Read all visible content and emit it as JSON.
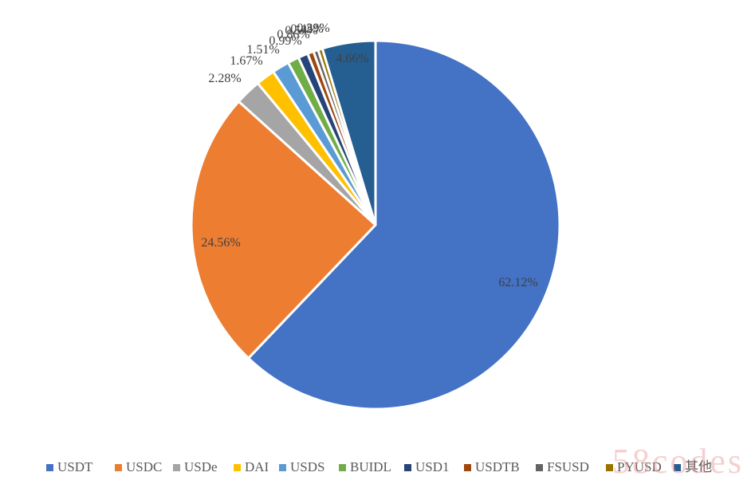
{
  "chart_data": {
    "type": "pie",
    "title": "",
    "slices": [
      {
        "label": "USDT",
        "value": 62.12,
        "display": "62.12%",
        "color": "#4472C4"
      },
      {
        "label": "USDC",
        "value": 24.56,
        "display": "24.56%",
        "color": "#ED7D31"
      },
      {
        "label": "USDe",
        "value": 2.28,
        "display": "2.28%",
        "color": "#A5A5A5"
      },
      {
        "label": "DAI",
        "value": 1.67,
        "display": "1.67%",
        "color": "#FFC000"
      },
      {
        "label": "USDS",
        "value": 1.51,
        "display": "1.51%",
        "color": "#5B9BD5"
      },
      {
        "label": "BUIDL",
        "value": 0.99,
        "display": "0.99%",
        "color": "#70AD47"
      },
      {
        "label": "USD1",
        "value": 0.86,
        "display": "0.86%",
        "color": "#264478"
      },
      {
        "label": "USDTB",
        "value": 0.54,
        "display": "0.54%",
        "color": "#9E480E"
      },
      {
        "label": "FSUSD",
        "value": 0.42,
        "display": "0.42%",
        "color": "#636363"
      },
      {
        "label": "PYUSD",
        "value": 0.39,
        "display": "0.39%",
        "color": "#997300"
      },
      {
        "label": "其他",
        "value": 4.66,
        "display": "4.66%",
        "color": "#255E91"
      }
    ],
    "legend_position": "bottom"
  },
  "watermark": "58codes"
}
